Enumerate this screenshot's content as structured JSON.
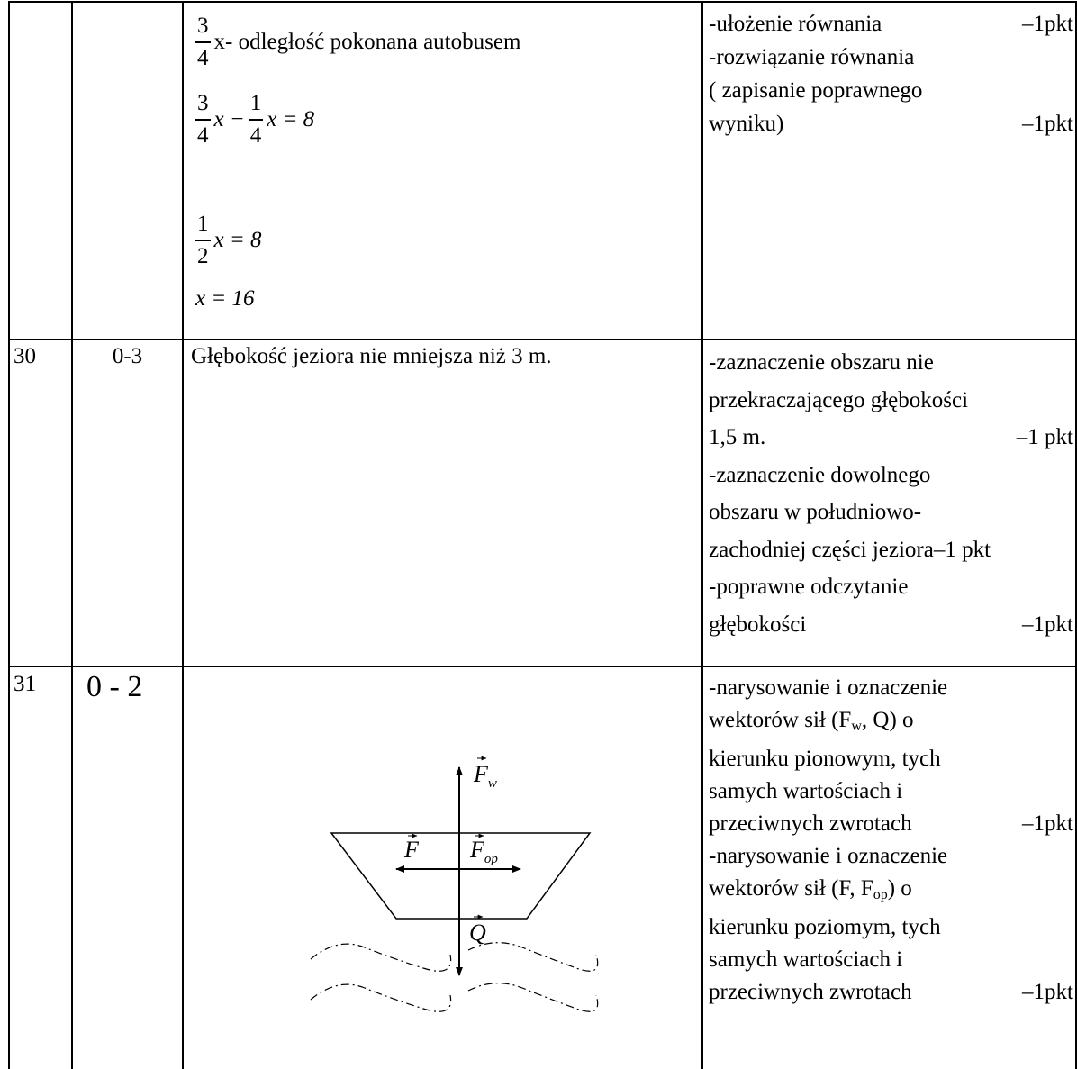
{
  "rows": [
    {
      "solution": {
        "lines": [
          {
            "frac": {
              "num": "3",
              "den": "4"
            },
            "text": "x- odległość pokonana autobusem"
          },
          {
            "frac": {
              "num": "3",
              "den": "4"
            },
            "mid": "x −",
            "frac2": {
              "num": "1",
              "den": "4"
            },
            "text": "x = 8"
          },
          {
            "frac": {
              "num": "1",
              "den": "2"
            },
            "text": "x = 8"
          },
          {
            "text": "x = 16"
          }
        ]
      },
      "criteria": [
        {
          "text": "-ułożenie równania",
          "pts": "–1pkt"
        },
        {
          "text": "-rozwiązanie równania"
        },
        {
          "text": "( zapisanie poprawnego"
        },
        {
          "text": "wyniku)",
          "pts": "–1pkt"
        }
      ]
    },
    {
      "number": "30",
      "points": "0-3",
      "solution": "Głębokość jeziora nie mniejsza niż 3 m.",
      "criteria": [
        {
          "text": "-zaznaczenie obszaru nie"
        },
        {
          "text": "przekraczającego głębokości"
        },
        {
          "text": "1,5 m.",
          "pts": "–1 pkt"
        },
        {
          "text": "-zaznaczenie dowolnego"
        },
        {
          "text": "obszaru w południowo-"
        },
        {
          "text": "zachodniej części jeziora–1 pkt"
        },
        {
          "text": "-poprawne odczytanie"
        },
        {
          "text": "głębokości",
          "pts": "–1pkt"
        }
      ]
    },
    {
      "number": "31",
      "points": "0 - 2",
      "diagram": {
        "fw": {
          "base": "F",
          "sub": "w"
        },
        "f": "F",
        "fop": {
          "base": "F",
          "sub": "op"
        },
        "q": "Q"
      },
      "criteria": [
        {
          "text": "-narysowanie i oznaczenie"
        },
        {
          "text": "wektorów sił (F",
          "sub": "w",
          "after": ", Q) o"
        },
        {
          "text": "kierunku pionowym, tych"
        },
        {
          "text": "samych wartościach i"
        },
        {
          "text": "przeciwnych zwrotach",
          "pts": "–1pkt"
        },
        {
          "text": "-narysowanie i oznaczenie"
        },
        {
          "text": "wektorów sił (F, F",
          "sub": "op",
          "after": ") o"
        },
        {
          "text": "kierunku poziomym, tych"
        },
        {
          "text": "samych wartościach i"
        },
        {
          "text": "przeciwnych zwrotach",
          "pts": "–1pkt"
        }
      ]
    }
  ]
}
